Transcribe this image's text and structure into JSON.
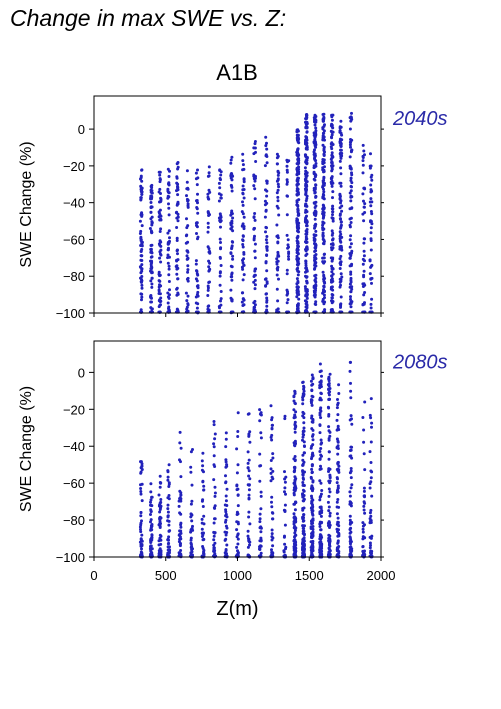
{
  "figure": {
    "title": "Change in max SWE vs. Z:",
    "scenario": "A1B"
  },
  "colors": {
    "points": "#2222bb",
    "period_label": "#2a2aa8",
    "axis": "#000000"
  },
  "chart_data": [
    {
      "type": "scatter",
      "panel": "top",
      "period_label": "2040s",
      "xlabel": "",
      "ylabel": "SWE Change (%)",
      "xlim": [
        0,
        2000
      ],
      "ylim": [
        -100,
        18
      ],
      "xticks": [
        0,
        500,
        1000,
        1500,
        2000
      ],
      "xtick_labels_shown": false,
      "yticks": [
        0,
        -20,
        -40,
        -60,
        -80,
        -100
      ],
      "ytick_labels": [
        "0",
        "−20",
        "−40",
        "−60",
        "−80",
        "−100"
      ],
      "point_clusters": [
        {
          "z": 330,
          "ymin": -100,
          "ymax": -22,
          "n": 70
        },
        {
          "z": 400,
          "ymin": -100,
          "ymax": -30,
          "n": 70
        },
        {
          "z": 460,
          "ymin": -100,
          "ymax": -22,
          "n": 60
        },
        {
          "z": 520,
          "ymin": -100,
          "ymax": -20,
          "n": 50
        },
        {
          "z": 580,
          "ymin": -100,
          "ymax": -18,
          "n": 50
        },
        {
          "z": 650,
          "ymin": -100,
          "ymax": -20,
          "n": 40
        },
        {
          "z": 720,
          "ymin": -100,
          "ymax": -17,
          "n": 40
        },
        {
          "z": 800,
          "ymin": -100,
          "ymax": -17,
          "n": 40
        },
        {
          "z": 880,
          "ymin": -100,
          "ymax": -20,
          "n": 40
        },
        {
          "z": 960,
          "ymin": -100,
          "ymax": -12,
          "n": 50
        },
        {
          "z": 1040,
          "ymin": -100,
          "ymax": -10,
          "n": 50
        },
        {
          "z": 1120,
          "ymin": -100,
          "ymax": -5,
          "n": 50
        },
        {
          "z": 1200,
          "ymin": -100,
          "ymax": -4,
          "n": 50
        },
        {
          "z": 1280,
          "ymin": -100,
          "ymax": -6,
          "n": 45
        },
        {
          "z": 1350,
          "ymin": -100,
          "ymax": -5,
          "n": 30
        },
        {
          "z": 1420,
          "ymin": -100,
          "ymax": 0,
          "n": 180
        },
        {
          "z": 1480,
          "ymin": -100,
          "ymax": 8,
          "n": 180
        },
        {
          "z": 1540,
          "ymin": -100,
          "ymax": 8,
          "n": 160
        },
        {
          "z": 1600,
          "ymin": -100,
          "ymax": 9,
          "n": 140
        },
        {
          "z": 1660,
          "ymin": -100,
          "ymax": 8,
          "n": 110
        },
        {
          "z": 1720,
          "ymin": -100,
          "ymax": 5,
          "n": 90
        },
        {
          "z": 1790,
          "ymin": -100,
          "ymax": 9,
          "n": 80
        },
        {
          "z": 1880,
          "ymin": -100,
          "ymax": -8,
          "n": 40
        },
        {
          "z": 1930,
          "ymin": -100,
          "ymax": -8,
          "n": 40
        }
      ],
      "bias": 1.0
    },
    {
      "type": "scatter",
      "panel": "bottom",
      "period_label": "2080s",
      "xlabel": "Z(m)",
      "ylabel": "SWE Change (%)",
      "xlim": [
        0,
        2000
      ],
      "ylim": [
        -100,
        17
      ],
      "xticks": [
        0,
        500,
        1000,
        1500,
        2000
      ],
      "xtick_labels": [
        "0",
        "500",
        "1000",
        "1500",
        "2000"
      ],
      "yticks": [
        0,
        -20,
        -40,
        -60,
        -80,
        -100
      ],
      "ytick_labels": [
        "0",
        "−20",
        "−40",
        "−60",
        "−80",
        "−100"
      ],
      "point_clusters": [
        {
          "z": 330,
          "ymin": -100,
          "ymax": -45,
          "n": 50
        },
        {
          "z": 400,
          "ymin": -100,
          "ymax": -60,
          "n": 60
        },
        {
          "z": 460,
          "ymin": -100,
          "ymax": -55,
          "n": 60
        },
        {
          "z": 520,
          "ymin": -100,
          "ymax": -50,
          "n": 50
        },
        {
          "z": 600,
          "ymin": -100,
          "ymax": -32,
          "n": 50
        },
        {
          "z": 680,
          "ymin": -100,
          "ymax": -40,
          "n": 40
        },
        {
          "z": 760,
          "ymin": -100,
          "ymax": -36,
          "n": 40
        },
        {
          "z": 840,
          "ymin": -100,
          "ymax": -24,
          "n": 40
        },
        {
          "z": 920,
          "ymin": -100,
          "ymax": -25,
          "n": 40
        },
        {
          "z": 1000,
          "ymin": -100,
          "ymax": -20,
          "n": 40
        },
        {
          "z": 1080,
          "ymin": -100,
          "ymax": -22,
          "n": 40
        },
        {
          "z": 1160,
          "ymin": -100,
          "ymax": -15,
          "n": 40
        },
        {
          "z": 1240,
          "ymin": -100,
          "ymax": -18,
          "n": 40
        },
        {
          "z": 1330,
          "ymin": -100,
          "ymax": -15,
          "n": 30
        },
        {
          "z": 1400,
          "ymin": -100,
          "ymax": -10,
          "n": 140
        },
        {
          "z": 1460,
          "ymin": -100,
          "ymax": -5,
          "n": 150
        },
        {
          "z": 1520,
          "ymin": -100,
          "ymax": 0,
          "n": 140
        },
        {
          "z": 1580,
          "ymin": -100,
          "ymax": 7,
          "n": 120
        },
        {
          "z": 1640,
          "ymin": -100,
          "ymax": 0,
          "n": 100
        },
        {
          "z": 1700,
          "ymin": -100,
          "ymax": -5,
          "n": 80
        },
        {
          "z": 1790,
          "ymin": -100,
          "ymax": 8,
          "n": 70
        },
        {
          "z": 1880,
          "ymin": -100,
          "ymax": -10,
          "n": 40
        },
        {
          "z": 1930,
          "ymin": -100,
          "ymax": -12,
          "n": 40
        }
      ],
      "bias": 2.2
    }
  ]
}
